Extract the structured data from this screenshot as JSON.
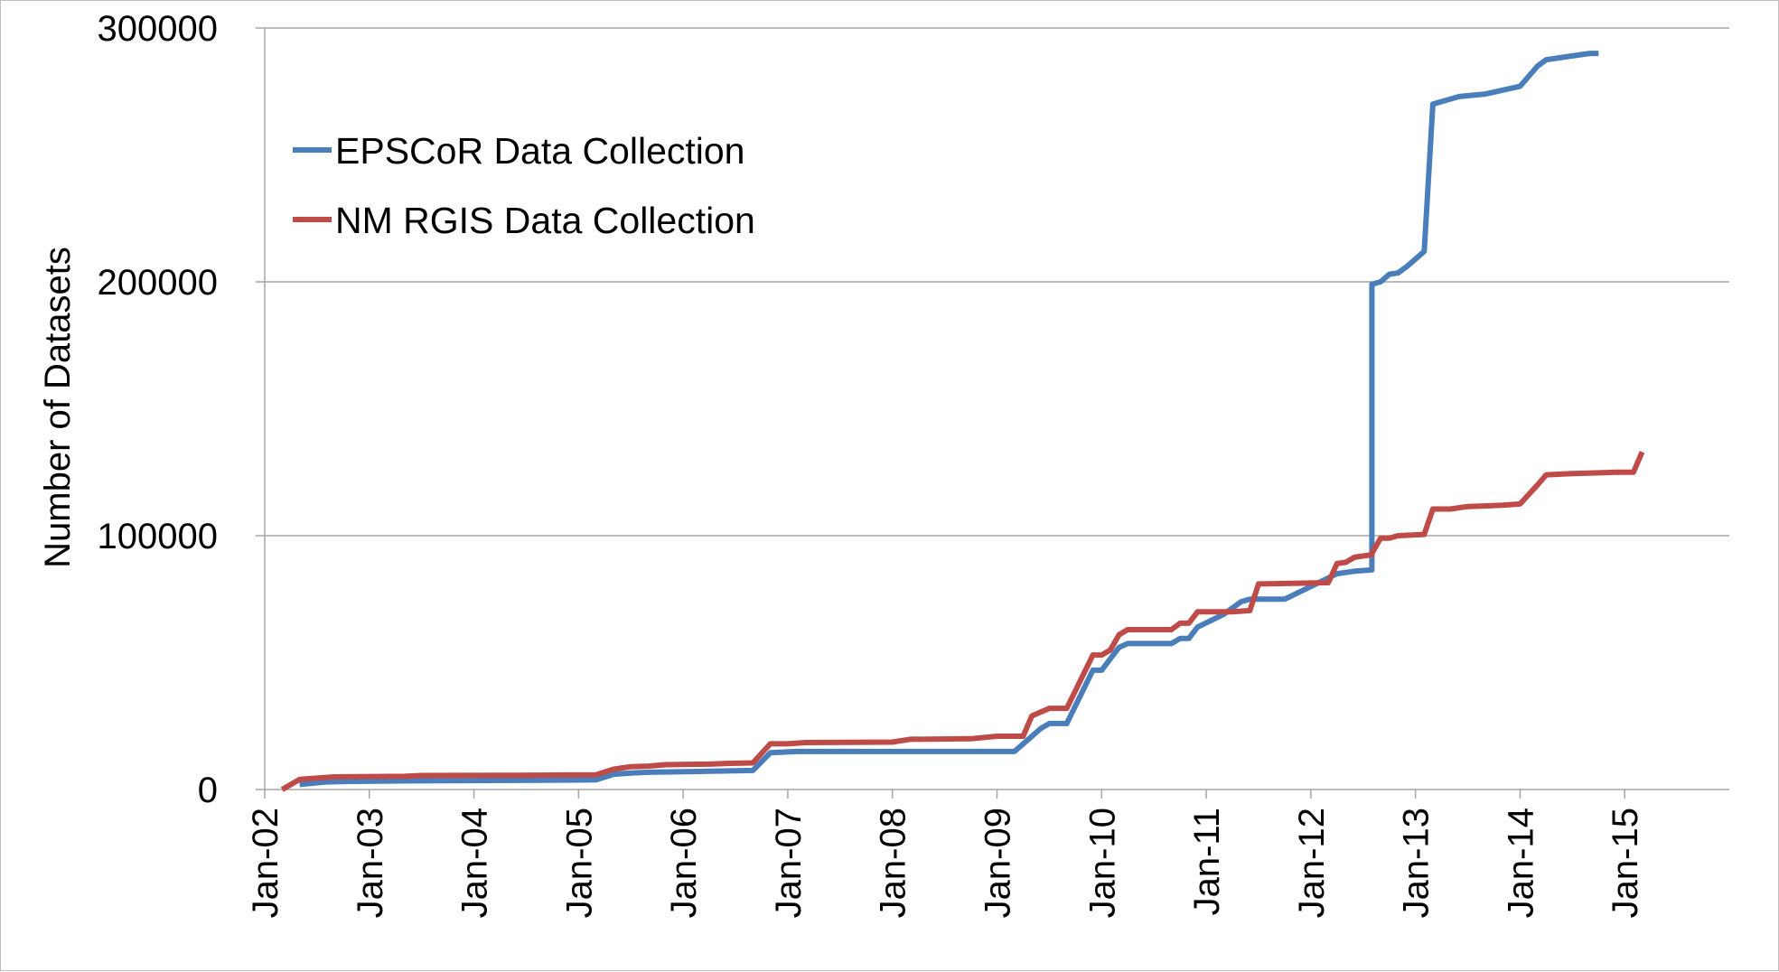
{
  "chart_data": {
    "type": "line",
    "title": "",
    "xlabel": "",
    "ylabel": "Number of Datasets",
    "ylim": [
      0,
      300000
    ],
    "yticks": [
      "0",
      "100000",
      "200000",
      "300000"
    ],
    "xlim": [
      "2002-01",
      "2016-01"
    ],
    "xticks": [
      {
        "date": "2002-01",
        "label": "Jan-02"
      },
      {
        "date": "2003-01",
        "label": "Jan-03"
      },
      {
        "date": "2004-01",
        "label": "Jan-04"
      },
      {
        "date": "2005-01",
        "label": "Jan-05"
      },
      {
        "date": "2006-01",
        "label": "Jan-06"
      },
      {
        "date": "2007-01",
        "label": "Jan-07"
      },
      {
        "date": "2008-01",
        "label": "Jan-08"
      },
      {
        "date": "2009-01",
        "label": "Jan-09"
      },
      {
        "date": "2010-01",
        "label": "Jan-10"
      },
      {
        "date": "2011-01",
        "label": "Jan-11"
      },
      {
        "date": "2012-01",
        "label": "Jan-12"
      },
      {
        "date": "2013-01",
        "label": "Jan-13"
      },
      {
        "date": "2014-01",
        "label": "Jan-14"
      },
      {
        "date": "2015-01",
        "label": "Jan-15"
      }
    ],
    "grid": "horizontal",
    "legend_position": "top-left",
    "series": [
      {
        "name": "EPSCoR Data Collection",
        "color": "#4a7ebb",
        "points": [
          [
            "2002-05",
            2000
          ],
          [
            "2002-08",
            3000
          ],
          [
            "2002-11",
            3200
          ],
          [
            "2003-06",
            3400
          ],
          [
            "2004-06",
            3600
          ],
          [
            "2005-03",
            3800
          ],
          [
            "2005-05",
            6000
          ],
          [
            "2005-07",
            6500
          ],
          [
            "2005-09",
            6800
          ],
          [
            "2006-01",
            7000
          ],
          [
            "2006-04",
            7200
          ],
          [
            "2006-09",
            7500
          ],
          [
            "2006-11",
            14500
          ],
          [
            "2007-02",
            15000
          ],
          [
            "2008-06",
            15000
          ],
          [
            "2009-03",
            15000
          ],
          [
            "2009-06",
            24000
          ],
          [
            "2009-07",
            26000
          ],
          [
            "2009-09",
            26000
          ],
          [
            "2009-12",
            47000
          ],
          [
            "2010-01",
            47000
          ],
          [
            "2010-03",
            56000
          ],
          [
            "2010-04",
            57500
          ],
          [
            "2010-09",
            57500
          ],
          [
            "2010-10",
            59500
          ],
          [
            "2010-11",
            59500
          ],
          [
            "2010-12",
            64000
          ],
          [
            "2011-03",
            69000
          ],
          [
            "2011-05",
            74000
          ],
          [
            "2011-06",
            75000
          ],
          [
            "2011-10",
            75000
          ],
          [
            "2012-01",
            80000
          ],
          [
            "2012-04",
            85000
          ],
          [
            "2012-06",
            86000
          ],
          [
            "2012-08",
            86500
          ],
          [
            "2012-08",
            199000
          ],
          [
            "2012-09",
            200000
          ],
          [
            "2012-10",
            203000
          ],
          [
            "2012-11",
            203500
          ],
          [
            "2012-12",
            206000
          ],
          [
            "2013-02",
            212000
          ],
          [
            "2013-03",
            270000
          ],
          [
            "2013-06",
            273000
          ],
          [
            "2013-09",
            274000
          ],
          [
            "2013-11",
            275500
          ],
          [
            "2014-01",
            277000
          ],
          [
            "2014-03",
            285000
          ],
          [
            "2014-04",
            287500
          ],
          [
            "2014-07",
            289000
          ],
          [
            "2014-09",
            290000
          ],
          [
            "2014-10",
            290000
          ]
        ]
      },
      {
        "name": "NM RGIS Data Collection",
        "color": "#be4b48",
        "points": [
          [
            "2002-03",
            0
          ],
          [
            "2002-05",
            4000
          ],
          [
            "2002-09",
            5000
          ],
          [
            "2003-05",
            5200
          ],
          [
            "2003-07",
            5500
          ],
          [
            "2004-06",
            5600
          ],
          [
            "2005-03",
            5800
          ],
          [
            "2005-05",
            8000
          ],
          [
            "2005-07",
            9000
          ],
          [
            "2005-09",
            9200
          ],
          [
            "2005-11",
            9800
          ],
          [
            "2006-04",
            10000
          ],
          [
            "2006-06",
            10300
          ],
          [
            "2006-09",
            10500
          ],
          [
            "2006-11",
            18000
          ],
          [
            "2007-01",
            18000
          ],
          [
            "2007-03",
            18500
          ],
          [
            "2008-01",
            18700
          ],
          [
            "2008-03",
            19800
          ],
          [
            "2008-10",
            20000
          ],
          [
            "2009-01",
            21000
          ],
          [
            "2009-04",
            21000
          ],
          [
            "2009-05",
            29000
          ],
          [
            "2009-07",
            32000
          ],
          [
            "2009-09",
            32000
          ],
          [
            "2009-12",
            53000
          ],
          [
            "2010-01",
            53000
          ],
          [
            "2010-02",
            55000
          ],
          [
            "2010-03",
            61000
          ],
          [
            "2010-04",
            63000
          ],
          [
            "2010-09",
            63000
          ],
          [
            "2010-10",
            65500
          ],
          [
            "2010-11",
            65500
          ],
          [
            "2010-12",
            70000
          ],
          [
            "2011-04",
            70000
          ],
          [
            "2011-06",
            70500
          ],
          [
            "2011-07",
            81000
          ],
          [
            "2012-03",
            81500
          ],
          [
            "2012-04",
            89000
          ],
          [
            "2012-05",
            89500
          ],
          [
            "2012-06",
            91500
          ],
          [
            "2012-08",
            92500
          ],
          [
            "2012-08",
            93000
          ],
          [
            "2012-09",
            99000
          ],
          [
            "2012-10",
            99000
          ],
          [
            "2012-11",
            100000
          ],
          [
            "2013-02",
            100500
          ],
          [
            "2013-03",
            110500
          ],
          [
            "2013-05",
            110500
          ],
          [
            "2013-07",
            111500
          ],
          [
            "2013-11",
            112000
          ],
          [
            "2014-01",
            112500
          ],
          [
            "2014-03",
            120000
          ],
          [
            "2014-04",
            124000
          ],
          [
            "2014-07",
            124500
          ],
          [
            "2014-12",
            125000
          ],
          [
            "2015-02",
            125000
          ],
          [
            "2015-03",
            133000
          ]
        ]
      }
    ]
  }
}
